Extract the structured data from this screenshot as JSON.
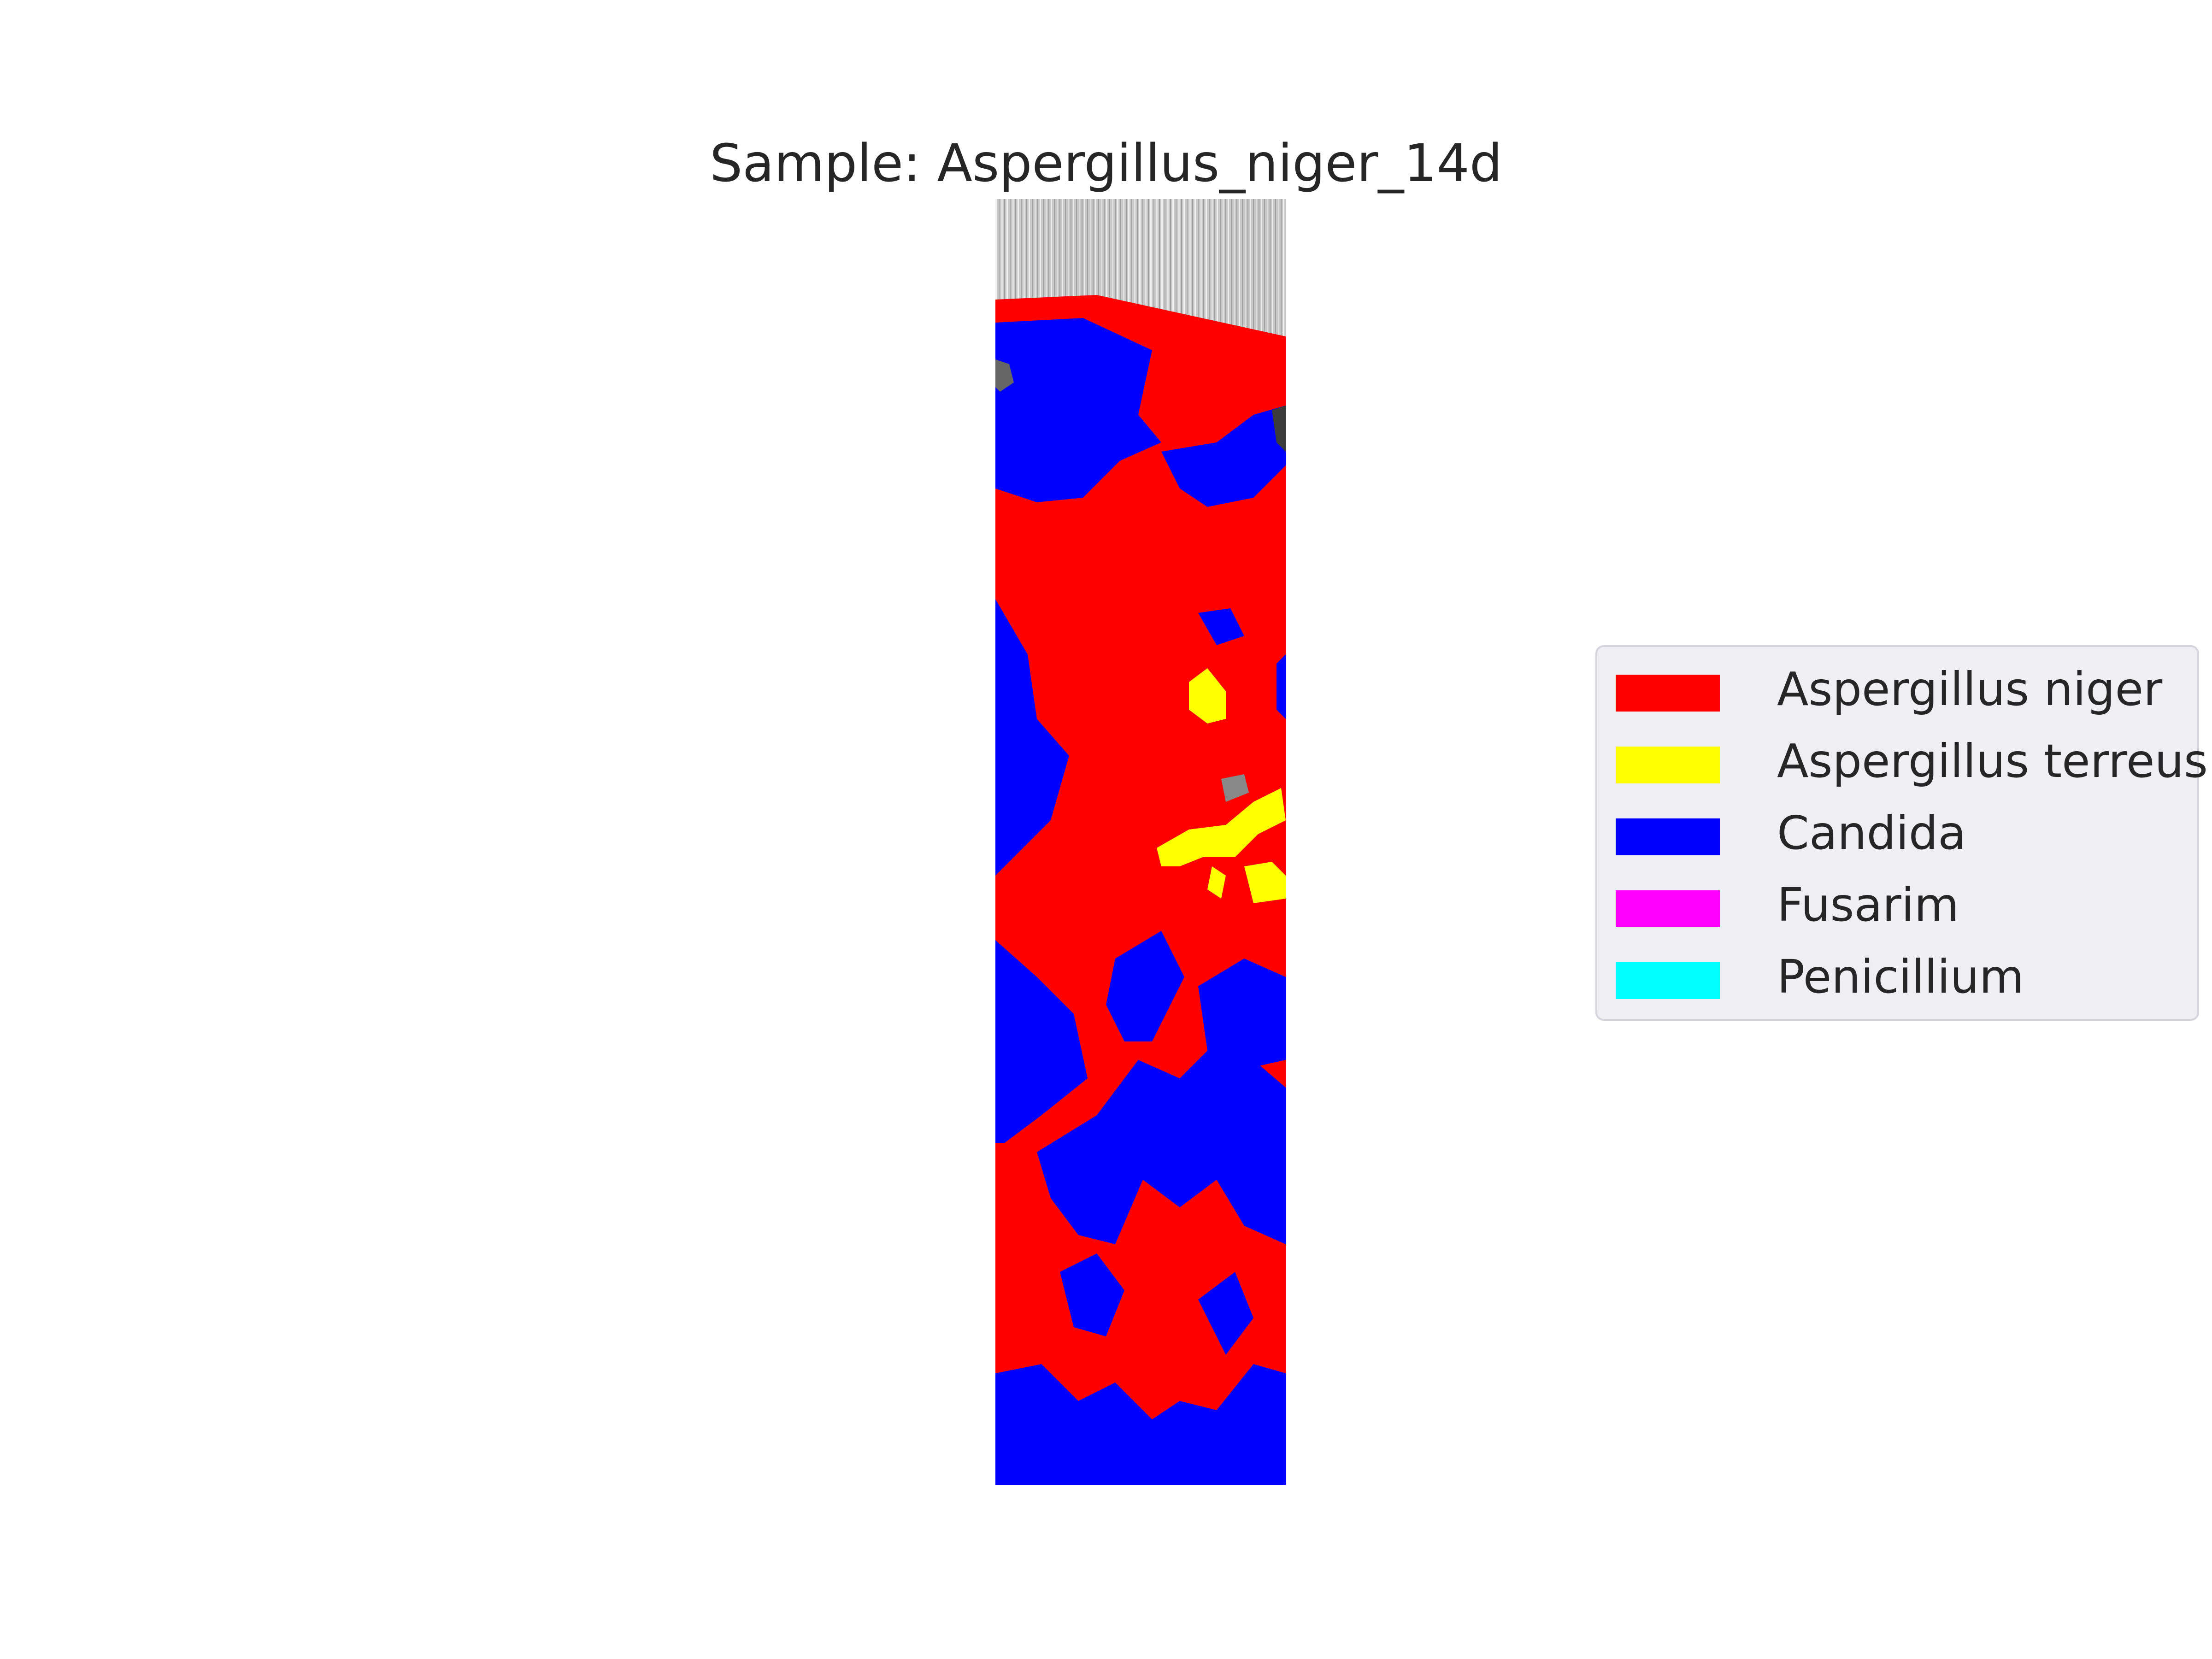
{
  "chart_data": {
    "type": "heatmap",
    "title": "Sample: Aspergillus_niger_14d",
    "axes_visible": false,
    "grid": false,
    "legend_placement": "center-right",
    "classes": [
      {
        "name": "Aspergillus niger",
        "color": "#ff0000"
      },
      {
        "name": "Aspergillus terreus",
        "color": "#ffff00"
      },
      {
        "name": "Candida",
        "color": "#0000ff"
      },
      {
        "name": "Fusarim",
        "color": "#ff00ff"
      },
      {
        "name": "Penicillium",
        "color": "#00ffff"
      }
    ],
    "background_color": "#b4b4b4"
  }
}
